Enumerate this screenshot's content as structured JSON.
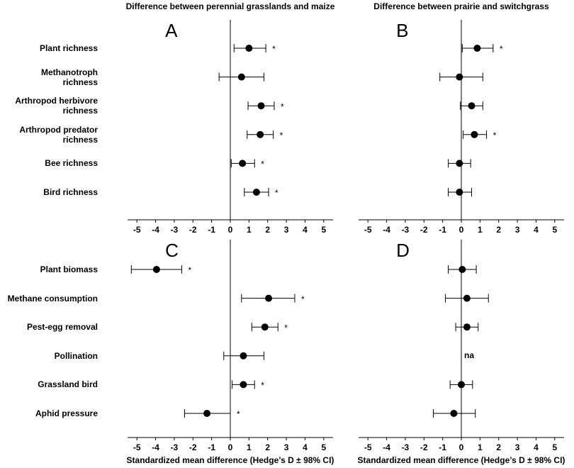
{
  "chart_data": [
    {
      "type": "forest",
      "panel": "A",
      "title": "Difference between perennial grasslands and maize",
      "categories": [
        "Plant richness",
        "Methanotroph richness",
        "Arthropod herbivore richness",
        "Arthropod predator richness",
        "Bee richness",
        "Bird richness"
      ],
      "values": [
        1.0,
        0.6,
        1.65,
        1.6,
        0.65,
        1.4
      ],
      "ci_low": [
        0.2,
        -0.6,
        0.95,
        0.9,
        0.05,
        0.75
      ],
      "ci_high": [
        1.9,
        1.8,
        2.35,
        2.3,
        1.3,
        2.05
      ],
      "significance": [
        true,
        false,
        true,
        true,
        true,
        true
      ],
      "significance_label": "*",
      "xlim": [
        -5.5,
        5.5
      ],
      "xticks": [
        -5,
        -4,
        -3,
        -2,
        -1,
        0,
        1,
        2,
        3,
        4,
        5
      ],
      "color": "#000000"
    },
    {
      "type": "forest",
      "panel": "B",
      "title": "Difference between prairie and switchgrass",
      "values": [
        0.85,
        -0.1,
        0.55,
        0.7,
        -0.1,
        -0.1
      ],
      "ci_low": [
        0.05,
        -1.15,
        -0.05,
        0.1,
        -0.7,
        -0.7
      ],
      "ci_high": [
        1.7,
        1.15,
        1.15,
        1.35,
        0.5,
        0.55
      ],
      "significance": [
        true,
        false,
        false,
        true,
        false,
        false
      ],
      "significance_label": "*",
      "xlim": [
        -5.5,
        5.5
      ],
      "xticks": [
        -5,
        -4,
        -3,
        -2,
        -1,
        0,
        1,
        2,
        3,
        4,
        5
      ],
      "color": "#000000"
    },
    {
      "type": "forest",
      "panel": "C",
      "xlabel": "Standardized mean difference (Hedge’s D ± 98% CI)",
      "categories": [
        "Plant biomass",
        "Methane consumption",
        "Pest-egg removal",
        "Pollination",
        "Grassland bird",
        "Aphid pressure"
      ],
      "values": [
        -3.95,
        2.05,
        1.85,
        0.7,
        0.7,
        -1.25
      ],
      "ci_low": [
        -5.3,
        0.6,
        1.15,
        -0.35,
        0.1,
        -2.45
      ],
      "ci_high": [
        -2.6,
        3.45,
        2.55,
        1.8,
        1.3,
        0.0
      ],
      "significance": [
        true,
        true,
        true,
        false,
        true,
        true
      ],
      "significance_label": "*",
      "xlim": [
        -5.5,
        5.5
      ],
      "xticks": [
        -5,
        -4,
        -3,
        -2,
        -1,
        0,
        1,
        2,
        3,
        4,
        5
      ],
      "color": "#000000"
    },
    {
      "type": "forest",
      "panel": "D",
      "xlabel": "Standardized mean difference (Hedge’s D ± 98% CI)",
      "values": [
        0.05,
        0.3,
        0.3,
        null,
        0.0,
        -0.4
      ],
      "value_labels": [
        null,
        null,
        null,
        "na",
        null,
        null
      ],
      "ci_low": [
        -0.7,
        -0.85,
        -0.3,
        null,
        -0.6,
        -1.5
      ],
      "ci_high": [
        0.8,
        1.45,
        0.9,
        null,
        0.6,
        0.75
      ],
      "significance": [
        false,
        false,
        false,
        false,
        false,
        false
      ],
      "significance_label": "*",
      "xlim": [
        -5.5,
        5.5
      ],
      "xticks": [
        -5,
        -4,
        -3,
        -2,
        -1,
        0,
        1,
        2,
        3,
        4,
        5
      ],
      "color": "#000000"
    }
  ]
}
